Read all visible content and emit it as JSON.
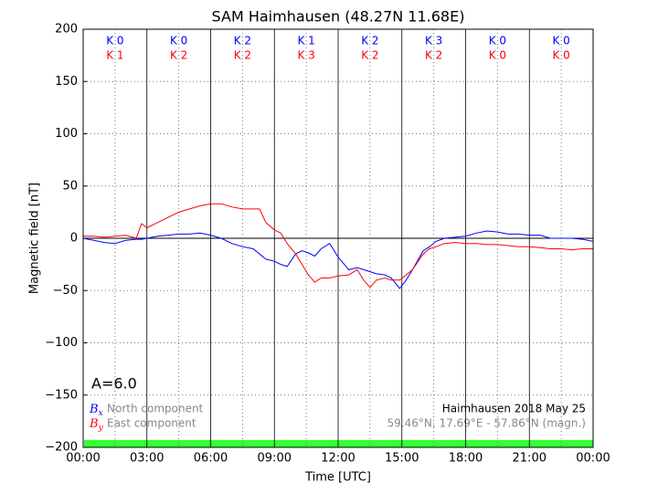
{
  "chart_data": {
    "type": "line",
    "title": "SAM Haimhausen (48.27N 11.68E)",
    "xlabel": "Time [UTC]",
    "ylabel": "Magnetic field [nT]",
    "activity": "A=6.0",
    "station": "Haimhausen 2018 May 25",
    "coords": "59.46°N, 17.69°E - 57.86°N (magn.)",
    "x": [
      0,
      0.5,
      1,
      1.5,
      2,
      2.5,
      2.75,
      3,
      3.5,
      4,
      4.5,
      5,
      5.5,
      6,
      6.5,
      7,
      7.5,
      8,
      8.3,
      8.6,
      9,
      9.3,
      9.6,
      10,
      10.3,
      10.6,
      10.9,
      11.2,
      11.6,
      12,
      12.5,
      12.9,
      13.2,
      13.5,
      13.8,
      14.2,
      14.5,
      14.9,
      15.2,
      15.5,
      16,
      16.3,
      16.6,
      17,
      17.5,
      18,
      18.5,
      19,
      19.5,
      20,
      20.5,
      21,
      21.5,
      22,
      22.5,
      23,
      23.5,
      24
    ],
    "series": [
      {
        "name": "North component",
        "symbol": "B",
        "sub": "x",
        "color": "#0000ff",
        "values": [
          0,
          -2,
          -4,
          -5,
          -2,
          -1,
          -1,
          0,
          2,
          3,
          4,
          4,
          5,
          3,
          0,
          -5,
          -8,
          -10,
          -15,
          -20,
          -22,
          -25,
          -27,
          -15,
          -12,
          -14,
          -17,
          -10,
          -5,
          -18,
          -30,
          -28,
          -30,
          -32,
          -34,
          -35,
          -38,
          -48,
          -40,
          -30,
          -12,
          -8,
          -3,
          0,
          1,
          2,
          5,
          7,
          6,
          4,
          4,
          3,
          3,
          0,
          0,
          0,
          -1,
          -3
        ]
      },
      {
        "name": "East component",
        "symbol": "B",
        "sub": "y",
        "color": "#ff0000",
        "values": [
          2,
          2,
          1,
          2,
          3,
          0,
          14,
          10,
          15,
          20,
          25,
          28,
          31,
          33,
          33,
          30,
          28,
          28,
          28,
          15,
          8,
          5,
          -5,
          -15,
          -25,
          -35,
          -42,
          -38,
          -38,
          -36,
          -35,
          -30,
          -40,
          -47,
          -40,
          -38,
          -40,
          -40,
          -35,
          -30,
          -15,
          -10,
          -8,
          -5,
          -4,
          -5,
          -5,
          -6,
          -6,
          -7,
          -8,
          -8,
          -9,
          -10,
          -10,
          -11,
          -10,
          -10
        ]
      }
    ],
    "k_rows": [
      {
        "color": "#0000ff",
        "values": [
          "K 0",
          "K 0",
          "K 2",
          "K 1",
          "K 2",
          "K 3",
          "K 0",
          "K 0"
        ]
      },
      {
        "color": "#ff0000",
        "values": [
          "K 1",
          "K 2",
          "K 2",
          "K 3",
          "K 2",
          "K 2",
          "K 0",
          "K 0"
        ]
      }
    ],
    "xlim": [
      0,
      24
    ],
    "ylim": [
      -200,
      200
    ],
    "xticks": [
      {
        "value": 0,
        "label": "00:00"
      },
      {
        "value": 3,
        "label": "03:00"
      },
      {
        "value": 6,
        "label": "06:00"
      },
      {
        "value": 9,
        "label": "09:00"
      },
      {
        "value": 12,
        "label": "12:00"
      },
      {
        "value": 15,
        "label": "15:00"
      },
      {
        "value": 18,
        "label": "18:00"
      },
      {
        "value": 21,
        "label": "21:00"
      },
      {
        "value": 24,
        "label": "00:00"
      }
    ],
    "minor_xticks": [
      1.5,
      4.5,
      7.5,
      10.5,
      13.5,
      16.5,
      19.5,
      22.5
    ],
    "yticks": [
      {
        "value": -200,
        "label": "−200"
      },
      {
        "value": -150,
        "label": "−150"
      },
      {
        "value": -100,
        "label": "−100"
      },
      {
        "value": -50,
        "label": "−50"
      },
      0,
      50,
      100,
      150,
      200
    ],
    "grid": true
  }
}
